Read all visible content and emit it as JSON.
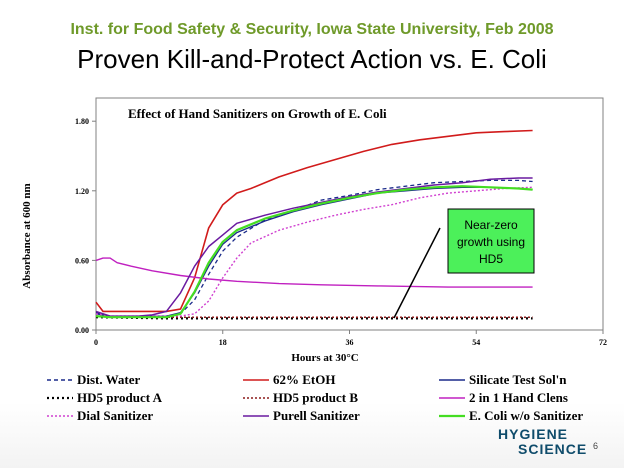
{
  "slide": {
    "subtitle": "Inst. for Food Safety & Security, Iowa State University, Feb 2008",
    "title": "Proven Kill-and-Protect Action vs. E. Coli",
    "page_number": "6"
  },
  "logo": {
    "line1": "HYGIENE",
    "line2": "SCIENCE"
  },
  "annotation": {
    "lines": [
      "Near-zero",
      "growth using",
      "HD5"
    ],
    "bg": "#4cf05a"
  },
  "chart_data": {
    "type": "line",
    "title": "Effect of  Hand Sanitizers on Growth of  E. Coli",
    "xlabel": "Hours at 30°C",
    "ylabel": "Absorbance  at 600 nm",
    "xlim": [
      0,
      72
    ],
    "ylim": [
      0,
      2.0
    ],
    "xticks": [
      0,
      18,
      36,
      54,
      72
    ],
    "yticks": [
      0.0,
      0.6,
      1.2,
      1.8
    ],
    "ytick_labels": [
      "0.00",
      "0.60",
      "1.20",
      "1.80"
    ],
    "grid": false,
    "legend_position": "bottom",
    "series": [
      {
        "name": "Dist. Water",
        "color": "#1a2a8a",
        "dash": "4,3",
        "width": 1.3,
        "x": [
          0,
          2,
          6,
          10,
          12,
          14,
          16,
          18,
          20,
          24,
          28,
          32,
          36,
          40,
          44,
          48,
          52,
          56,
          60,
          62
        ],
        "y": [
          0.15,
          0.12,
          0.12,
          0.12,
          0.14,
          0.26,
          0.48,
          0.68,
          0.8,
          0.95,
          1.03,
          1.12,
          1.16,
          1.21,
          1.24,
          1.27,
          1.28,
          1.29,
          1.29,
          1.28
        ]
      },
      {
        "name": "62% EtOH",
        "color": "#d11b1b",
        "dash": "",
        "width": 1.6,
        "x": [
          0,
          1,
          2,
          6,
          10,
          12,
          14,
          16,
          18,
          20,
          22,
          26,
          30,
          34,
          38,
          42,
          46,
          50,
          54,
          58,
          62
        ],
        "y": [
          0.24,
          0.16,
          0.16,
          0.16,
          0.16,
          0.18,
          0.45,
          0.88,
          1.08,
          1.18,
          1.22,
          1.32,
          1.4,
          1.47,
          1.54,
          1.6,
          1.64,
          1.67,
          1.7,
          1.71,
          1.72
        ]
      },
      {
        "name": "Silicate Test Sol'n",
        "color": "#1a2a8a",
        "dash": "",
        "width": 1.3,
        "x": [
          0,
          2,
          6,
          10,
          12,
          14,
          16,
          18,
          20,
          24,
          28,
          32,
          36,
          40,
          44,
          48,
          52,
          56,
          60,
          62
        ],
        "y": [
          0.14,
          0.12,
          0.12,
          0.12,
          0.15,
          0.32,
          0.55,
          0.74,
          0.84,
          0.94,
          1.02,
          1.08,
          1.13,
          1.18,
          1.2,
          1.22,
          1.23,
          1.23,
          1.22,
          1.21
        ]
      },
      {
        "name": "HD5 product A",
        "color": "#000000",
        "dash": "2,3",
        "width": 2.2,
        "x": [
          0,
          10,
          20,
          30,
          40,
          50,
          62
        ],
        "y": [
          0.11,
          0.1,
          0.1,
          0.1,
          0.1,
          0.1,
          0.1
        ]
      },
      {
        "name": "HD5 product B",
        "color": "#8b1a1a",
        "dash": "2,2",
        "width": 1.5,
        "x": [
          0,
          10,
          20,
          30,
          40,
          50,
          62
        ],
        "y": [
          0.12,
          0.11,
          0.11,
          0.11,
          0.11,
          0.11,
          0.11
        ]
      },
      {
        "name": "2 in 1 Hand Clens",
        "color": "#c020c0",
        "dash": "",
        "width": 1.4,
        "x": [
          0,
          1,
          2,
          3,
          5,
          8,
          12,
          16,
          20,
          26,
          32,
          40,
          50,
          62
        ],
        "y": [
          0.6,
          0.62,
          0.62,
          0.58,
          0.55,
          0.51,
          0.47,
          0.44,
          0.42,
          0.4,
          0.39,
          0.38,
          0.37,
          0.37
        ]
      },
      {
        "name": "Dial Sanitizer",
        "color": "#d040d0",
        "dash": "2,2",
        "width": 1.4,
        "x": [
          0,
          2,
          8,
          12,
          14,
          16,
          18,
          20,
          22,
          26,
          30,
          34,
          38,
          42,
          46,
          50,
          54,
          58,
          62
        ],
        "y": [
          0.14,
          0.12,
          0.12,
          0.12,
          0.14,
          0.25,
          0.45,
          0.62,
          0.75,
          0.86,
          0.93,
          0.99,
          1.04,
          1.08,
          1.14,
          1.18,
          1.2,
          1.22,
          1.23
        ]
      },
      {
        "name": "Purell Sanitizer",
        "color": "#6a1aa0",
        "dash": "",
        "width": 1.5,
        "x": [
          0,
          2,
          6,
          8,
          10,
          12,
          14,
          16,
          18,
          20,
          24,
          28,
          32,
          36,
          40,
          44,
          48,
          52,
          56,
          60,
          62
        ],
        "y": [
          0.16,
          0.12,
          0.12,
          0.13,
          0.16,
          0.32,
          0.55,
          0.72,
          0.82,
          0.92,
          0.99,
          1.05,
          1.1,
          1.15,
          1.19,
          1.22,
          1.25,
          1.27,
          1.3,
          1.31,
          1.31
        ]
      },
      {
        "name": "E. Coli w/o Sanitizer",
        "color": "#44dd22",
        "dash": "",
        "width": 2.2,
        "x": [
          0,
          2,
          6,
          10,
          12,
          14,
          16,
          18,
          20,
          24,
          28,
          32,
          36,
          40,
          44,
          48,
          52,
          56,
          60,
          62
        ],
        "y": [
          0.12,
          0.11,
          0.11,
          0.11,
          0.14,
          0.33,
          0.58,
          0.76,
          0.86,
          0.96,
          1.03,
          1.09,
          1.14,
          1.18,
          1.21,
          1.23,
          1.24,
          1.23,
          1.22,
          1.21
        ]
      }
    ]
  }
}
